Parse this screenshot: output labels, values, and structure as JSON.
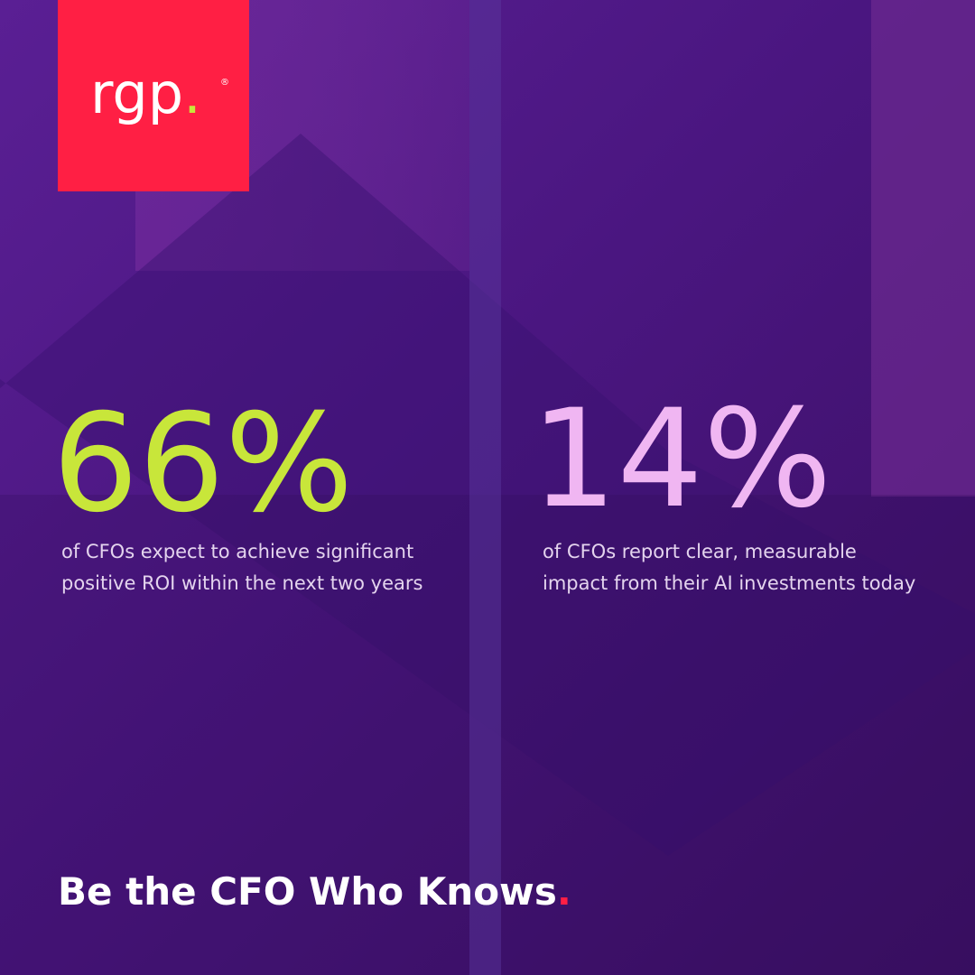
{
  "logo": {
    "text": "rgp",
    "mark": ".",
    "registered": "®"
  },
  "stats": [
    {
      "value": "66%",
      "lines": [
        "of CFOs expect to achieve significant",
        "positive ROI within the next two years"
      ]
    },
    {
      "value": "14%",
      "lines": [
        "of CFOs report clear, measurable",
        "impact from their AI investments today"
      ]
    }
  ],
  "tagline": {
    "text": "Be the CFO Who Knows",
    "end": "."
  }
}
